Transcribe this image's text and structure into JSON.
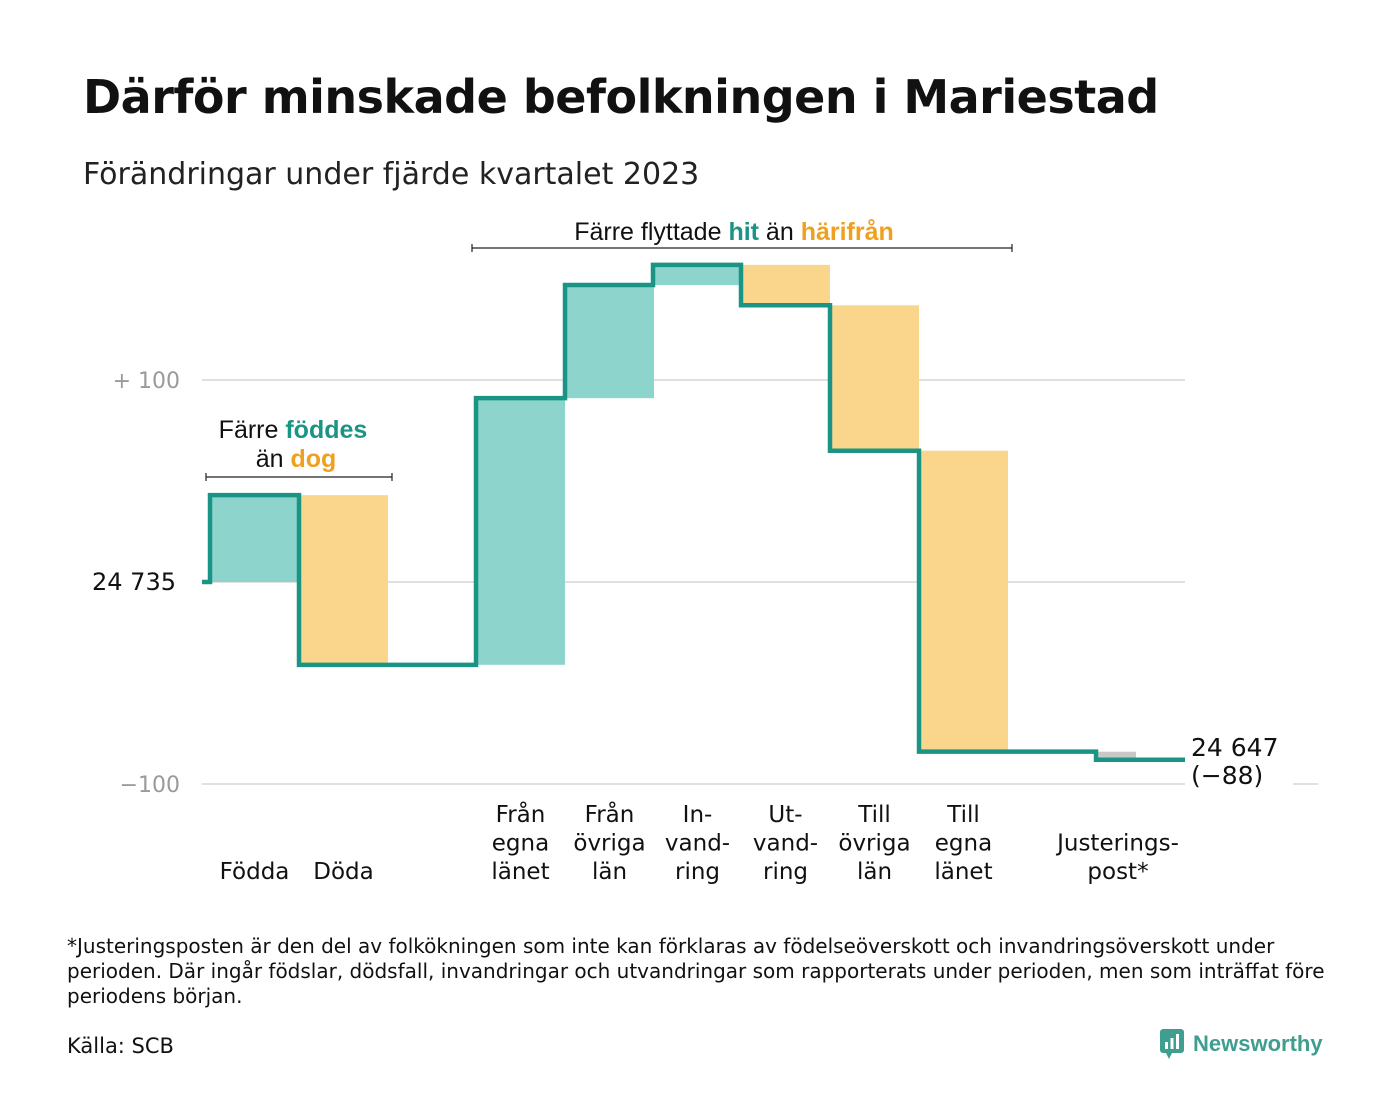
{
  "title": "Därför minskade befolkningen i Mariestad",
  "subtitle": "Förändringar under fjärde kvartalet 2023",
  "colors": {
    "increase": "#8dd5cc",
    "decrease": "#fad68c",
    "line": "#1a9585",
    "accent_teal": "#1a9585",
    "accent_orange": "#f0a020",
    "grid": "#e0e0e0",
    "adjust": "#c8c8c8"
  },
  "chart_data": {
    "type": "waterfall",
    "start_value": 24735,
    "start_label": "24  735",
    "end_label_value": "24 647",
    "end_label_change": "(−88)",
    "ylim": [
      -100,
      100
    ],
    "y_ticks": [
      {
        "value": 100,
        "label": "+  100"
      },
      {
        "value": 0,
        "label": ""
      },
      {
        "value": -100,
        "label": "−100"
      }
    ],
    "steps": [
      {
        "label": [
          "Födda"
        ],
        "change": 43,
        "kind": "increase"
      },
      {
        "label": [
          "Döda"
        ],
        "change": -84,
        "kind": "decrease"
      },
      {
        "label": [
          "Från",
          "egna",
          "länet"
        ],
        "change": 132,
        "kind": "increase"
      },
      {
        "label": [
          "Från",
          "övriga",
          "län"
        ],
        "change": 56,
        "kind": "increase"
      },
      {
        "label": [
          "In-",
          "vand-",
          "ring"
        ],
        "change": 10,
        "kind": "increase"
      },
      {
        "label": [
          "Ut-",
          "vand-",
          "ring"
        ],
        "change": -20,
        "kind": "decrease"
      },
      {
        "label": [
          "Till",
          "övriga",
          "län"
        ],
        "change": -72,
        "kind": "decrease"
      },
      {
        "label": [
          "Till",
          "egna",
          "länet"
        ],
        "change": -149,
        "kind": "decrease"
      },
      {
        "label": [
          "Justerings-",
          "post*"
        ],
        "change": -4,
        "kind": "adjust"
      }
    ],
    "annotations": [
      {
        "id": "births",
        "lines": [
          [
            {
              "text": "Färre ",
              "color": "dark"
            },
            {
              "text": "föddes",
              "color": "teal"
            }
          ],
          [
            {
              "text": "än ",
              "color": "dark"
            },
            {
              "text": "dog",
              "color": "orange"
            }
          ]
        ]
      },
      {
        "id": "migration",
        "lines": [
          [
            {
              "text": "Färre flyttade ",
              "color": "dark"
            },
            {
              "text": "hit",
              "color": "teal"
            },
            {
              "text": " än ",
              "color": "dark"
            },
            {
              "text": "härifrån",
              "color": "orange"
            }
          ]
        ]
      }
    ]
  },
  "footnote": "*Justeringsposten är den del av folkökningen som inte kan förklaras av födelseöverskott och invandringsöverskott under perioden. Där ingår födslar, dödsfall, invandringar och utvandringar som rapporterats under perioden, men som inträffat före periodens början.",
  "source": "Källa: SCB",
  "brand": "Newsworthy"
}
